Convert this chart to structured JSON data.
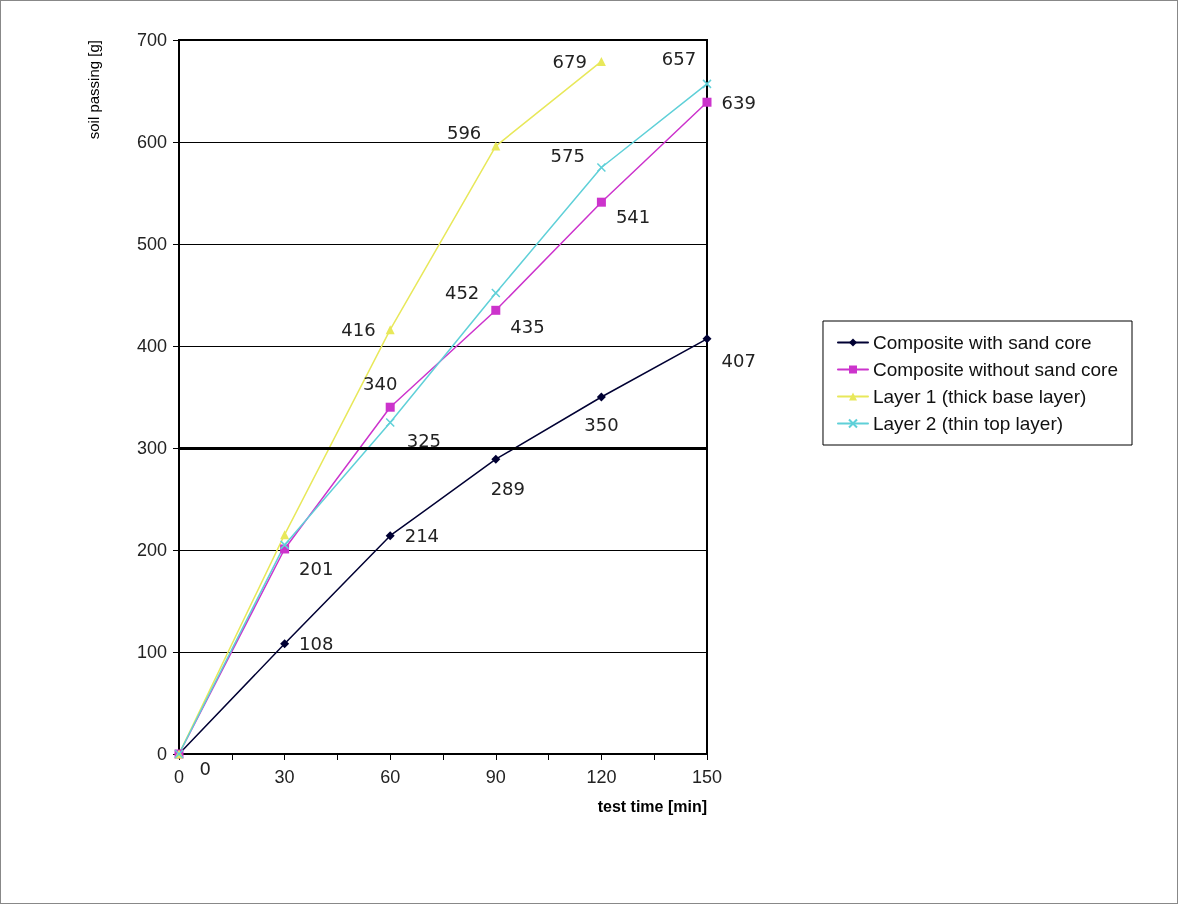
{
  "chart_data": {
    "type": "line",
    "xlabel": "test time [min]",
    "ylabel": "soil passing [g]",
    "x": [
      0,
      30,
      60,
      90,
      120,
      150
    ],
    "xlim": [
      0,
      150
    ],
    "xticks": [
      0,
      {
        "value": 15,
        "label": null
      },
      30,
      {
        "value": 45,
        "label": null
      },
      60,
      {
        "value": 75,
        "label": null
      },
      90,
      {
        "value": 105,
        "label": null
      },
      120,
      {
        "value": 135,
        "label": null
      },
      150
    ],
    "ylim": [
      0,
      700
    ],
    "yticks": [
      0,
      100,
      200,
      300,
      400,
      500,
      600,
      700
    ],
    "grid": "y",
    "legend": "right",
    "line_style": "solid",
    "ref_lines": [
      {
        "axis": "y",
        "value": 300,
        "color": "#000000"
      }
    ],
    "series": [
      {
        "name": "Composite with sand core",
        "color": "#000033",
        "marker": "diamond",
        "values": [
          0,
          108,
          214,
          289,
          350,
          407
        ],
        "value_labels": [
          "0",
          "108",
          "214",
          "289",
          "350",
          "407"
        ]
      },
      {
        "name": "Composite without sand core",
        "color": "#cc33cc",
        "marker": "square",
        "values": [
          0,
          201,
          340,
          435,
          541,
          639
        ],
        "value_labels": [
          null,
          "201",
          "340",
          "435",
          "541",
          "639"
        ]
      },
      {
        "name": "Layer 1 (thick base layer)",
        "color": "#e8e85a",
        "marker": "triangle",
        "values": [
          0,
          215,
          416,
          596,
          679,
          null
        ],
        "value_labels": [
          null,
          null,
          "416",
          "596",
          "679",
          null
        ]
      },
      {
        "name": "Layer 2 (thin top layer)",
        "color": "#5fd0d8",
        "marker": "cross",
        "values": [
          0,
          205,
          325,
          452,
          575,
          657
        ],
        "value_labels": [
          null,
          null,
          "325",
          "452",
          "575",
          "657"
        ]
      }
    ]
  }
}
